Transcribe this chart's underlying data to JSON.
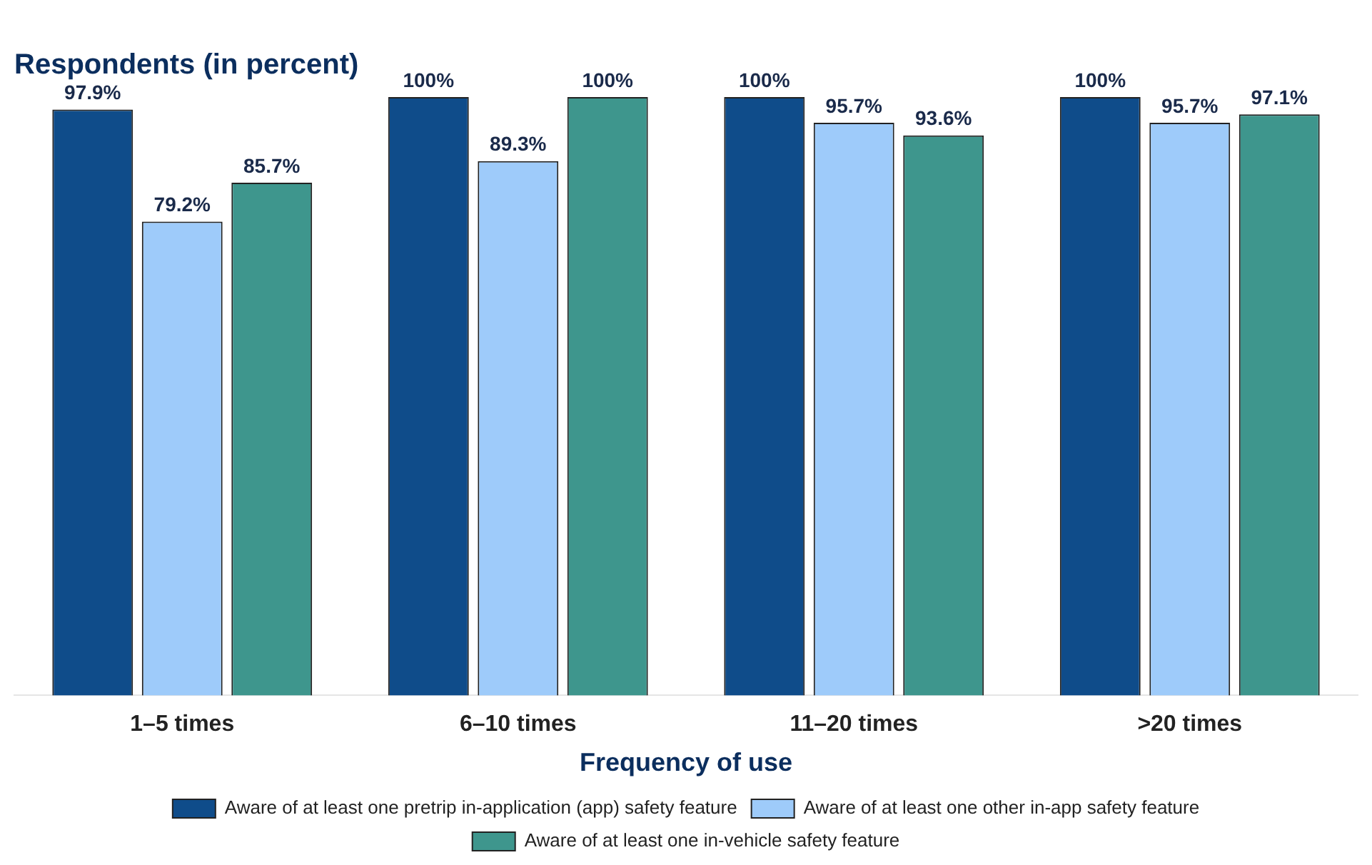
{
  "chart_data": {
    "type": "bar",
    "title": "Respondents (in percent)",
    "xlabel": "Frequency of use",
    "categories": [
      "1–5 times",
      "6–10 times",
      "11–20 times",
      ">20 times"
    ],
    "series": [
      {
        "name": "Aware of at least one pretrip in-application (app) safety feature",
        "color": "#0f4c8a",
        "values": [
          97.9,
          100,
          100,
          100
        ],
        "value_labels": [
          "97.9%",
          "100%",
          "100%",
          "100%"
        ]
      },
      {
        "name": "Aware of at least one other in-app safety feature",
        "color": "#9ecbfa",
        "values": [
          79.2,
          89.3,
          95.7,
          95.7
        ],
        "value_labels": [
          "79.2%",
          "89.3%",
          "95.7%",
          "95.7%"
        ]
      },
      {
        "name": "Aware of at least one in-vehicle safety feature",
        "color": "#3e968d",
        "values": [
          85.7,
          100,
          93.6,
          97.1
        ],
        "value_labels": [
          "85.7%",
          "100%",
          "93.6%",
          "97.1%"
        ]
      }
    ],
    "legend": "bottom"
  }
}
